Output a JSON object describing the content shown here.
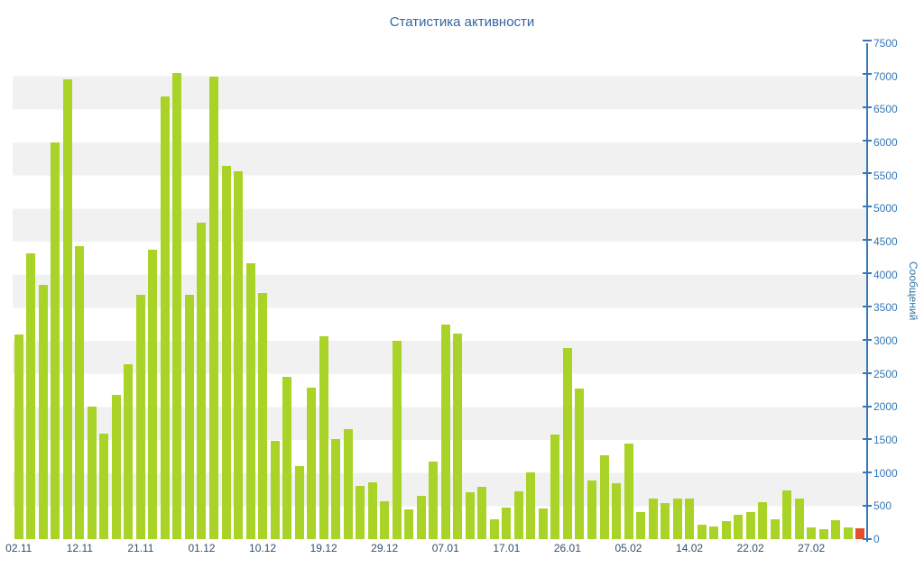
{
  "chart_data": {
    "type": "bar",
    "title": "Статистика активности",
    "ylabel": "Сообщений",
    "xlabel": "",
    "ylim": [
      0,
      7500
    ],
    "y_ticks": [
      0,
      500,
      1000,
      1500,
      2000,
      2500,
      3000,
      3500,
      4000,
      4500,
      5000,
      5500,
      6000,
      6500,
      7000,
      7500
    ],
    "x_tick_labels": [
      "02.11",
      "12.11",
      "21.11",
      "01.12",
      "10.12",
      "19.12",
      "29.12",
      "07.01",
      "17.01",
      "26.01",
      "05.02",
      "14.02",
      "22.02",
      "27.02"
    ],
    "bars_per_tick": 5,
    "values": [
      3100,
      4320,
      3850,
      6000,
      6950,
      4430,
      2000,
      1600,
      2180,
      2650,
      3700,
      4380,
      6700,
      7050,
      3700,
      4790,
      7000,
      5650,
      5560,
      4170,
      3720,
      1480,
      2450,
      1100,
      2290,
      3070,
      1520,
      1660,
      800,
      860,
      570,
      3000,
      450,
      650,
      1170,
      3250,
      3110,
      710,
      790,
      300,
      480,
      720,
      1010,
      460,
      1580,
      2890,
      2280,
      890,
      1270,
      840,
      1450,
      410,
      610,
      550,
      610,
      610,
      220,
      190,
      270,
      370,
      410,
      560,
      300,
      730,
      610,
      180,
      150,
      290,
      180,
      170
    ],
    "bar_color": "#a9d327",
    "last_bar_color": "#e74c2e",
    "stripe_color": "#f1f1f1",
    "axis_color": "#3579b8",
    "title_color": "#3565a0",
    "grid": "horizontal-stripes",
    "legend_position": "none"
  }
}
